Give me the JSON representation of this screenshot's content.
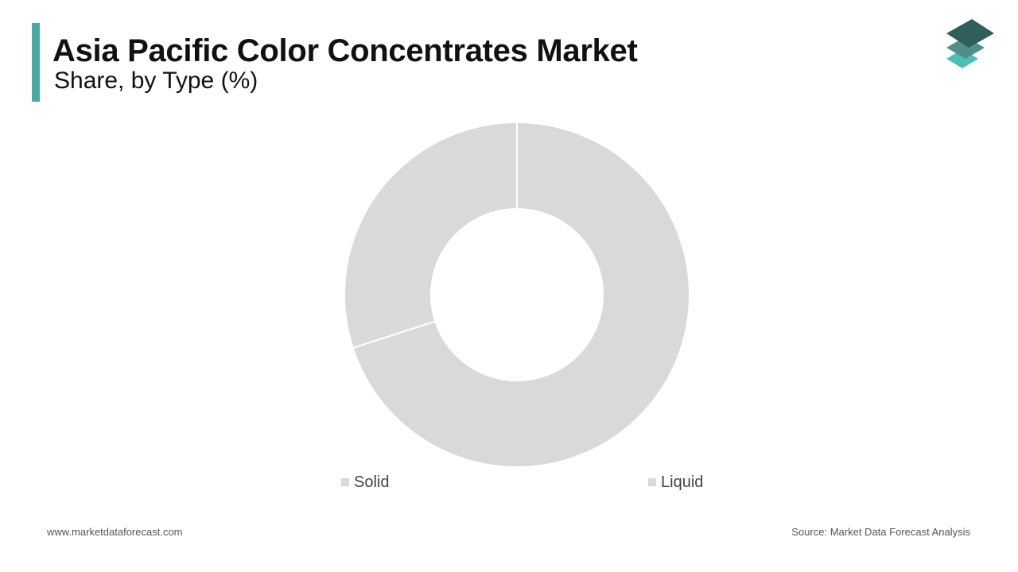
{
  "header": {
    "title": "Asia Pacific Color Concentrates Market",
    "subtitle": "Share, by Type (%)"
  },
  "logo": {
    "icon": "stacked-layers-icon",
    "colors": [
      "#2f5f58",
      "#4f8f88",
      "#4fbdb5"
    ]
  },
  "colors": {
    "accent": "#4aa9a6",
    "slice": "#d9d9d9",
    "separator": "#ffffff"
  },
  "chart_data": {
    "type": "pie",
    "variant": "donut",
    "title": "Asia Pacific Color Concentrates Market",
    "subtitle": "Share, by Type (%)",
    "categories": [
      "Solid",
      "Liquid"
    ],
    "values": [
      30,
      70
    ],
    "colors": [
      "#d9d9d9",
      "#d9d9d9"
    ],
    "legend_position": "bottom"
  },
  "footer": {
    "website": "www.marketdataforecast.com",
    "source": "Source: Market Data Forecast Analysis"
  }
}
